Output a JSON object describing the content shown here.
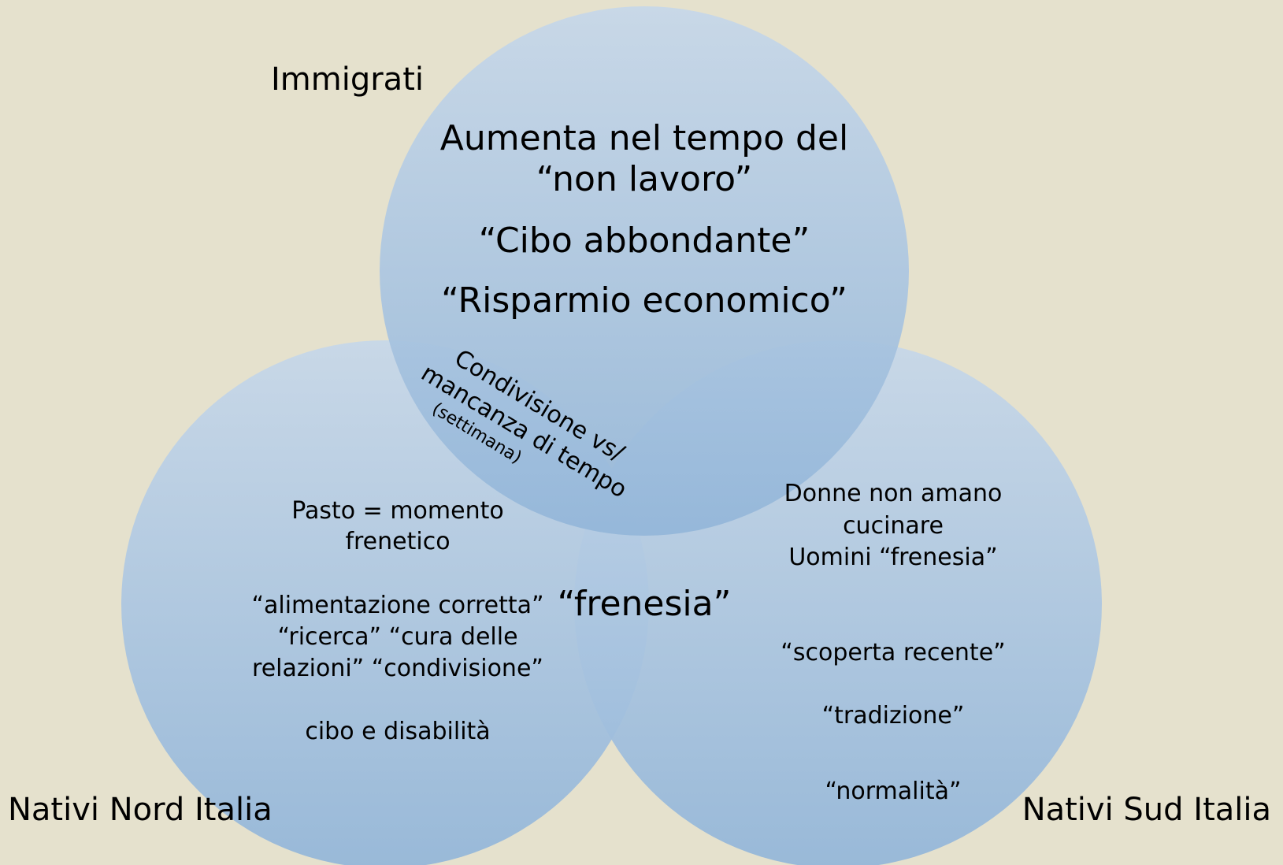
{
  "sets": {
    "immigrati": "Immigrati",
    "nord": "Nativi Nord Italia",
    "sud": "Nativi Sud Italia"
  },
  "immigrati_only": {
    "line1": "Aumenta nel tempo del",
    "line2": "“non lavoro”",
    "line3": "“Cibo abbondante”",
    "line4": "“Risparmio economico”"
  },
  "immigrati_nord": {
    "line1": "Condivisione vs/",
    "line2": "mancanza di tempo",
    "line3": "(settimana)"
  },
  "nord_sud": {
    "label": "“frenesia”"
  },
  "nord_only": {
    "line1": "Pasto = momento",
    "line2": "frenetico",
    "line3": "“alimentazione corretta”",
    "line4": "“ricerca” “cura delle",
    "line5": "relazioni” “condivisione”",
    "line6": "cibo e disabilità"
  },
  "sud_only": {
    "line1": "Donne non amano",
    "line2": "cucinare",
    "line3": "Uomini “frenesia”",
    "line4": "“scoperta recente”",
    "line5": "“tradizione”",
    "line6": "“normalità”"
  },
  "colors": {
    "background": "#e5e1cd",
    "circle_top": "#c5d6e8",
    "circle_bottom": "#9dbddb",
    "text": "#111111"
  }
}
